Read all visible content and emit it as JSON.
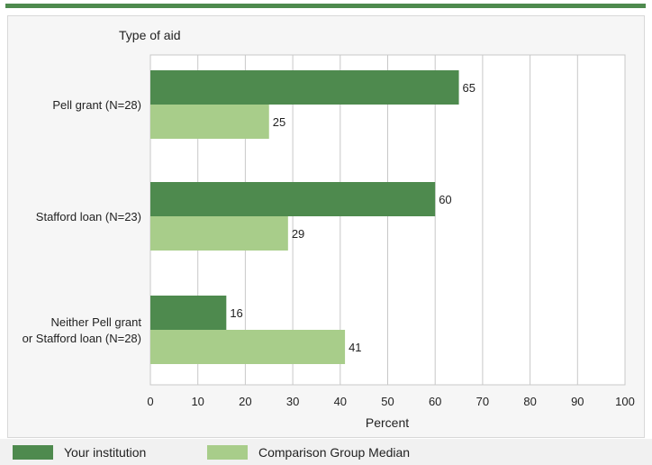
{
  "chart_data": {
    "type": "bar",
    "orientation": "horizontal",
    "title": "Type of aid",
    "xlabel": "Percent",
    "ylabel": "",
    "xlim": [
      0,
      100
    ],
    "xticks": [
      0,
      10,
      20,
      30,
      40,
      50,
      60,
      70,
      80,
      90,
      100
    ],
    "grid": true,
    "legend_position": "bottom",
    "categories": [
      [
        "Pell grant  (N=28)"
      ],
      [
        "Stafford loan (N=23)"
      ],
      [
        "Neither Pell grant",
        "or Stafford loan (N=28)"
      ]
    ],
    "series": [
      {
        "name": "Your institution",
        "values": [
          65,
          60,
          16
        ],
        "color": "#4e8a4e"
      },
      {
        "name": "Comparison Group Median",
        "values": [
          25,
          29,
          41
        ],
        "color": "#a8cd8a"
      }
    ]
  }
}
